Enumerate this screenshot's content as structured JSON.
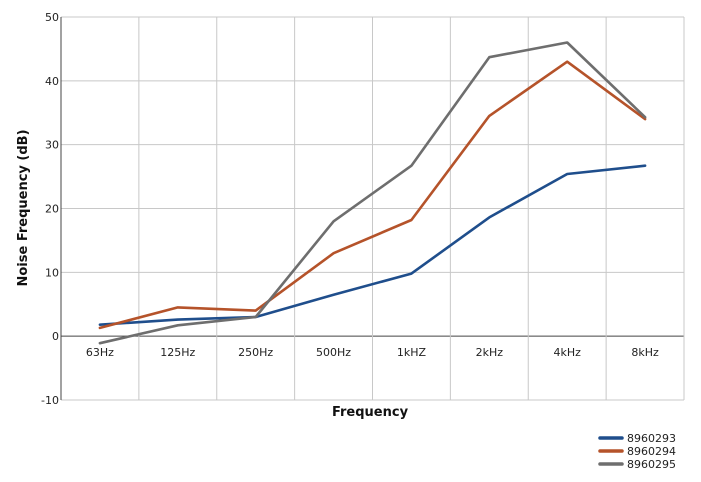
{
  "chart_data": {
    "type": "line",
    "title": "",
    "xlabel": "Frequency",
    "ylabel": "Noise Frequency (dB)",
    "categories": [
      "63Hz",
      "125Hz",
      "250Hz",
      "500Hz",
      "1kHZ",
      "2kHz",
      "4kHz",
      "8kHz"
    ],
    "ylim": [
      -10,
      50
    ],
    "yticks": [
      -10,
      0,
      10,
      20,
      30,
      40,
      50
    ],
    "grid": true,
    "legend_position": "bottom-right",
    "series": [
      {
        "name": "8960293",
        "color": "#1f4e8c",
        "values": [
          1.8,
          2.6,
          3.0,
          6.5,
          9.8,
          18.6,
          25.4,
          26.7
        ]
      },
      {
        "name": "8960294",
        "color": "#b5532a",
        "values": [
          1.3,
          4.5,
          4.0,
          13.0,
          18.2,
          34.5,
          43.0,
          34.0
        ]
      },
      {
        "name": "8960295",
        "color": "#6e6e6e",
        "values": [
          -1.1,
          1.7,
          3.0,
          18.0,
          26.7,
          43.7,
          46.0,
          34.3
        ]
      }
    ]
  }
}
